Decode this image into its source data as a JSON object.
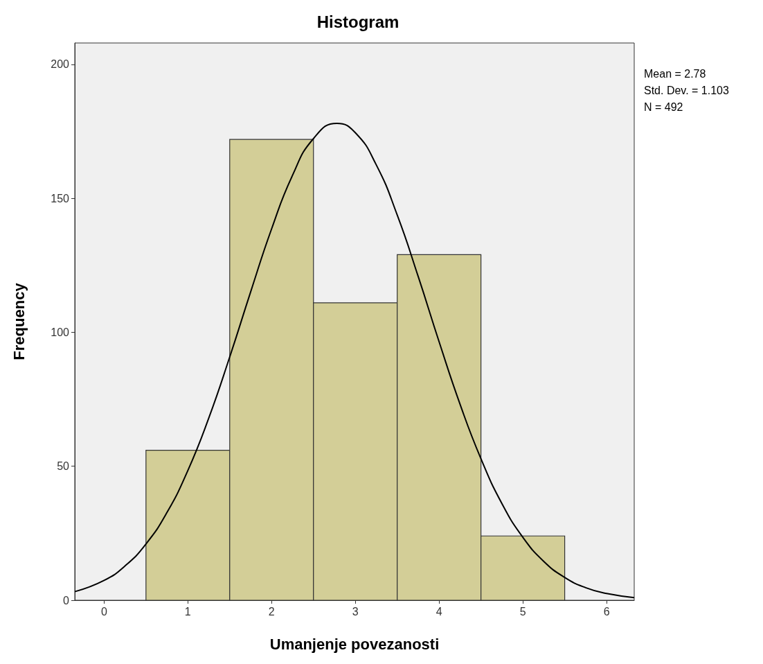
{
  "chart_data": {
    "type": "histogram",
    "title": "Histogram",
    "xlabel": "Umanjenje povezanosti",
    "ylabel": "Frequency",
    "bins": [
      0.5,
      1.5,
      2.5,
      3.5,
      4.5,
      5.5
    ],
    "values": [
      56,
      172,
      111,
      129,
      24
    ],
    "color": "#d3ce97",
    "xlim": [
      -0.35,
      6.33
    ],
    "xticks": [
      0,
      1,
      2,
      3,
      4,
      5,
      6
    ],
    "ylim": [
      0,
      208
    ],
    "yticks": [
      0,
      50,
      100,
      150,
      200
    ],
    "series": [
      {
        "type": "line",
        "color": "#000000",
        "marker": "none",
        "line_style": "solid",
        "x": [
          -0.35,
          0,
          0.25,
          0.5,
          0.75,
          1,
          1.25,
          1.5,
          1.75,
          2,
          2.25,
          2.5,
          2.78,
          3,
          3.25,
          3.5,
          3.75,
          4,
          4.25,
          4.5,
          4.75,
          5,
          5.25,
          5.5,
          5.75,
          6,
          6.33
        ],
        "values": [
          3.2,
          7.4,
          12.8,
          21,
          32.7,
          48.4,
          68,
          90.8,
          115.1,
          138.6,
          158.6,
          172.3,
          178,
          174.5,
          162.5,
          143.8,
          120.9,
          96.5,
          73.2,
          52.8,
          36.1,
          23.5,
          14.5,
          8.5,
          4.7,
          2.5,
          1
        ]
      }
    ],
    "annotations": [
      "Mean = 2.78",
      "Std. Dev. = 1.103",
      "N = 492"
    ]
  }
}
